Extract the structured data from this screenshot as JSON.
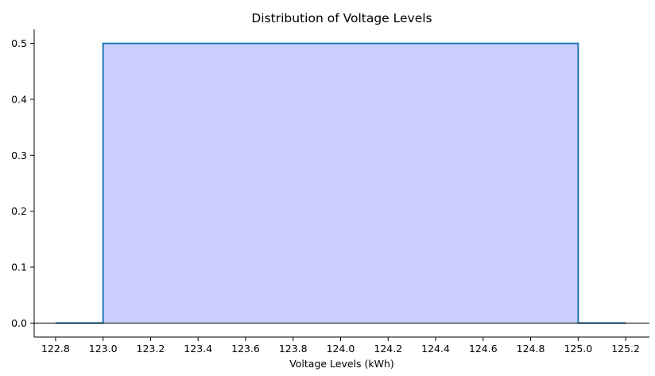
{
  "chart_data": {
    "type": "area",
    "title": "Distribution of Voltage Levels",
    "xlabel": "Voltage Levels (kWh)",
    "ylabel": "",
    "xlim": [
      122.71,
      125.3
    ],
    "ylim": [
      -0.025,
      0.525
    ],
    "x_ticks": [
      "122.8",
      "123.0",
      "123.2",
      "123.4",
      "123.6",
      "123.8",
      "124.0",
      "124.2",
      "124.4",
      "124.6",
      "124.8",
      "125.0",
      "125.2"
    ],
    "y_ticks": [
      "0.0",
      "0.1",
      "0.2",
      "0.3",
      "0.4",
      "0.5"
    ],
    "series": [
      {
        "x": [
          122.8,
          123.0,
          123.0,
          125.0,
          125.0,
          125.2
        ],
        "y": [
          0.0,
          0.0,
          0.5,
          0.5,
          0.0,
          0.0
        ]
      }
    ],
    "grid": false,
    "colors": {
      "line": "#1f77b4",
      "fill": "#ccccff",
      "axis": "#000000"
    }
  }
}
